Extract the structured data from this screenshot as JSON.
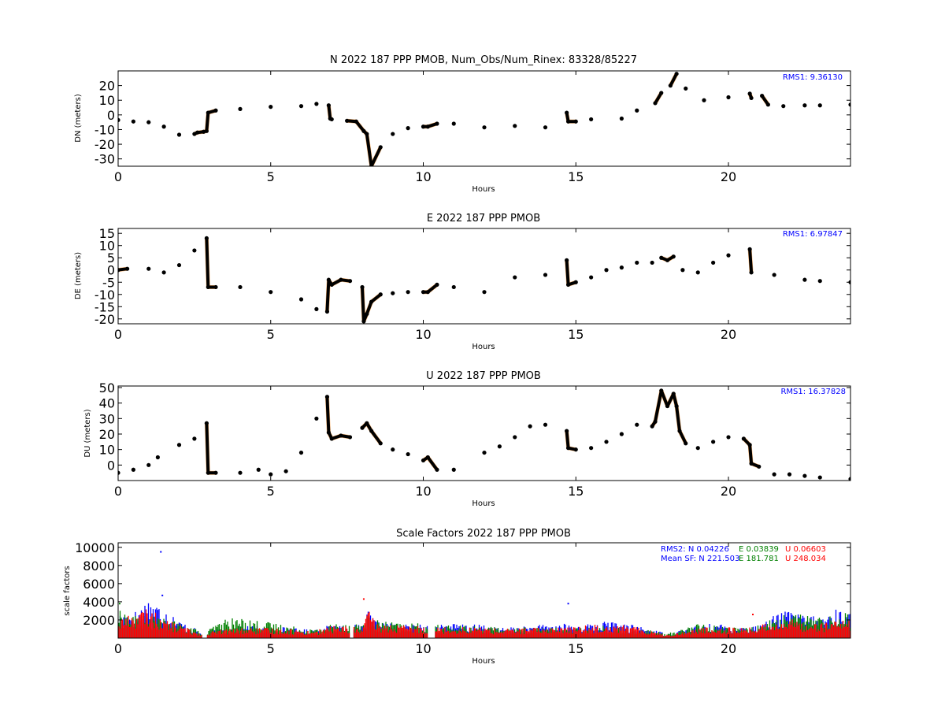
{
  "chart_data": [
    {
      "type": "scatter",
      "title": "N 2022 187 PPP  PMOB, Num_Obs/Num_Rinex: 83328/85227",
      "xlabel": "Hours",
      "ylabel": "DN (meters)",
      "xlim": [
        0,
        24
      ],
      "ylim": [
        -35,
        30
      ],
      "xticks": [
        0,
        5,
        10,
        15,
        20
      ],
      "yticks": [
        20,
        10,
        0,
        -10,
        -20,
        -30
      ],
      "annotation": "RMS1:  9.36130",
      "annotation_color": "#0000ff",
      "series": [
        {
          "marker_color": "#000000",
          "x": [
            0,
            0.5,
            1.0,
            1.5,
            2.0,
            2.5,
            2.6,
            2.8,
            2.9,
            2.95,
            3.2,
            4.0,
            5.0,
            6.0,
            6.5,
            6.9,
            6.95,
            7.0,
            7.5,
            7.8,
            8.05,
            8.15,
            8.3,
            8.6,
            9.0,
            9.5,
            10.0,
            10.15,
            10.45,
            11.0,
            12.0,
            13.0,
            14.0,
            14.7,
            14.75,
            15.0,
            15.5,
            16.5,
            17.0,
            17.6,
            17.8,
            18.1,
            18.3,
            18.6,
            19.2,
            20.0,
            20.7,
            20.75,
            21.1,
            21.3,
            21.8,
            22.5,
            23.0,
            24.0
          ],
          "y": [
            -3.5,
            -4.5,
            -5,
            -8,
            -13.5,
            -13,
            -12,
            -11.5,
            -11,
            1.5,
            3,
            4,
            5.5,
            6,
            7.5,
            6.5,
            -2.5,
            -3,
            -4,
            -4.5,
            -11,
            -13,
            -35,
            -22,
            -13,
            -9,
            -8,
            -8,
            -6,
            -6,
            -8.5,
            -7.5,
            -8.5,
            1.5,
            -4.5,
            -4.5,
            -3,
            -2.5,
            3,
            8,
            15,
            20,
            28,
            18,
            10,
            12,
            14.5,
            11.5,
            13,
            7,
            6,
            6.5,
            6.5,
            7
          ]
        }
      ]
    },
    {
      "type": "scatter",
      "title": "E 2022 187 PPP  PMOB",
      "xlabel": "Hours",
      "ylabel": "DE (meters)",
      "xlim": [
        0,
        24
      ],
      "ylim": [
        -22,
        17
      ],
      "xticks": [
        0,
        5,
        10,
        15,
        20
      ],
      "yticks": [
        15,
        10,
        5,
        0,
        -5,
        -10,
        -15,
        -20
      ],
      "annotation": "RMS1:  6.97847",
      "annotation_color": "#0000ff",
      "series": [
        {
          "marker_color": "#000000",
          "x": [
            0,
            0.3,
            1.0,
            1.5,
            2.0,
            2.5,
            2.9,
            2.95,
            3.2,
            4.0,
            5.0,
            6.0,
            6.5,
            6.85,
            6.9,
            7.0,
            7.3,
            7.6,
            8.0,
            8.05,
            8.15,
            8.3,
            8.6,
            9.0,
            9.5,
            10.0,
            10.15,
            10.45,
            11.0,
            12.0,
            13.0,
            14.0,
            14.7,
            14.75,
            15.0,
            15.5,
            16.0,
            16.5,
            17.0,
            17.5,
            17.8,
            18.0,
            18.2,
            18.5,
            19.0,
            19.5,
            20.0,
            20.7,
            20.75,
            21.5,
            22.5,
            23.0,
            24.0
          ],
          "y": [
            0,
            0.5,
            0.5,
            -1,
            2,
            8,
            13,
            -7,
            -7,
            -7,
            -9,
            -12,
            -16,
            -17,
            -4,
            -6,
            -4,
            -4.5,
            -7,
            -21,
            -18,
            -13,
            -10,
            -9.5,
            -9,
            -9,
            -9,
            -6,
            -7,
            -9,
            -3,
            -2,
            4,
            -6,
            -5,
            -3,
            0,
            1,
            3,
            3,
            5,
            4,
            5.5,
            0,
            -1,
            3,
            6,
            8.5,
            -1,
            -2,
            -4,
            -4.5,
            -5
          ]
        }
      ]
    },
    {
      "type": "scatter",
      "title": "U 2022 187 PPP  PMOB",
      "xlabel": "Hours",
      "ylabel": "DU (meters)",
      "xlim": [
        0,
        24
      ],
      "ylim": [
        -10,
        51
      ],
      "xticks": [
        0,
        5,
        10,
        15,
        20
      ],
      "yticks": [
        50,
        40,
        30,
        20,
        10,
        0
      ],
      "annotation": "RMS1: 16.37828",
      "annotation_color": "#0000ff",
      "series": [
        {
          "marker_color": "#000000",
          "x": [
            0,
            0.5,
            1.0,
            1.3,
            2.0,
            2.5,
            2.9,
            2.95,
            3.2,
            4.0,
            4.6,
            5.0,
            5.5,
            6.0,
            6.5,
            6.85,
            6.9,
            7.0,
            7.3,
            7.6,
            8.0,
            8.15,
            8.3,
            8.6,
            9.0,
            9.5,
            10.0,
            10.15,
            10.45,
            11.0,
            12.0,
            12.5,
            13.0,
            13.5,
            14.0,
            14.7,
            14.75,
            15.0,
            15.5,
            16.0,
            16.5,
            17.0,
            17.5,
            17.6,
            17.8,
            18.0,
            18.2,
            18.3,
            18.4,
            18.6,
            19.0,
            19.5,
            20.0,
            20.5,
            20.7,
            20.75,
            21.0,
            21.5,
            22.0,
            22.5,
            23.0,
            24.0
          ],
          "y": [
            -5,
            -3,
            0,
            5,
            13,
            17,
            27,
            -5,
            -5,
            -5,
            -3,
            -6,
            -4,
            8,
            30,
            44,
            21,
            17,
            19,
            18,
            24,
            27,
            22,
            14,
            10,
            7,
            3,
            5,
            -3,
            -3,
            8,
            12,
            18,
            25,
            26,
            22,
            11,
            10,
            11,
            15,
            20,
            26,
            25,
            28,
            48,
            38,
            46,
            38,
            22,
            14,
            11,
            15,
            18,
            17,
            13,
            1,
            -1,
            -6,
            -6,
            -7,
            -8,
            -9
          ]
        }
      ]
    },
    {
      "type": "bar",
      "title": "Scale Factors 2022 187 PPP  PMOB",
      "xlabel": "Hours",
      "ylabel": "scale factors",
      "xlim": [
        0,
        24
      ],
      "ylim": [
        0,
        10500
      ],
      "xticks": [
        0,
        5,
        10,
        15,
        20
      ],
      "yticks": [
        10000,
        8000,
        6000,
        4000,
        2000
      ],
      "annotations": [
        {
          "label": "RMS2: N  0.04226",
          "color": "#0000ff"
        },
        {
          "label": "E  0.03839",
          "color": "#008000"
        },
        {
          "label": "U  0.06603",
          "color": "#ff0000"
        },
        {
          "label": "Mean SF: N 221.503",
          "color": "#0000ff"
        },
        {
          "label": "E 181.781",
          "color": "#008000"
        },
        {
          "label": "U 248.034",
          "color": "#ff0000"
        }
      ],
      "series": [
        {
          "name": "N",
          "color": "#0000ff",
          "x": [
            0,
            0.5,
            1.0,
            1.5,
            2.0,
            2.5,
            2.9,
            3.0,
            3.5,
            4.0,
            4.5,
            5.0,
            5.5,
            6.0,
            6.5,
            7.0,
            7.5,
            8.0,
            8.2,
            8.5,
            9.0,
            9.5,
            10.0,
            10.5,
            11.0,
            11.5,
            12.0,
            12.5,
            13.0,
            13.5,
            14.0,
            14.5,
            15.0,
            15.5,
            16.0,
            16.5,
            17.0,
            17.5,
            18.0,
            18.5,
            19.0,
            19.5,
            20.0,
            20.5,
            21.0,
            21.5,
            22.0,
            22.5,
            23.0,
            23.5,
            24.0
          ],
          "y": [
            2200,
            2300,
            3600,
            2800,
            1600,
            900,
            200,
            700,
            900,
            1100,
            1100,
            1000,
            1000,
            800,
            800,
            1200,
            1300,
            1100,
            2400,
            1400,
            1300,
            1200,
            1200,
            1300,
            1300,
            1200,
            1200,
            900,
            1000,
            1100,
            1200,
            1300,
            1200,
            1300,
            1500,
            1300,
            1100,
            800,
            400,
            800,
            1100,
            1300,
            1200,
            1000,
            1200,
            2000,
            2500,
            2000,
            1900,
            2600,
            2200
          ]
        },
        {
          "name": "E",
          "color": "#008000",
          "x": [
            0,
            0.5,
            1.0,
            1.5,
            2.0,
            2.5,
            2.9,
            3.0,
            3.5,
            4.0,
            4.5,
            5.0,
            5.5,
            6.0,
            6.5,
            7.0,
            7.5,
            8.0,
            8.2,
            8.5,
            9.0,
            9.5,
            10.0,
            10.5,
            11.0,
            11.5,
            12.0,
            12.5,
            13.0,
            13.5,
            14.0,
            14.5,
            15.0,
            15.5,
            16.0,
            16.5,
            17.0,
            17.5,
            18.0,
            18.5,
            19.0,
            19.5,
            20.0,
            20.5,
            21.0,
            21.5,
            22.0,
            22.5,
            23.0,
            23.5,
            24.0
          ],
          "y": [
            2500,
            2000,
            2000,
            1700,
            1400,
            900,
            200,
            900,
            1700,
            1800,
            1600,
            1400,
            1200,
            900,
            800,
            1300,
            1500,
            1300,
            2100,
            1600,
            1400,
            1300,
            1300,
            1200,
            1100,
            1100,
            1100,
            900,
            900,
            1000,
            1000,
            900,
            900,
            1000,
            1100,
            1000,
            900,
            700,
            400,
            900,
            1300,
            1200,
            1000,
            900,
            1200,
            1800,
            2200,
            2100,
            1900,
            2000,
            2500
          ]
        },
        {
          "name": "U",
          "color": "#ff0000",
          "x": [
            0,
            0.5,
            1.0,
            1.5,
            2.0,
            2.5,
            2.9,
            3.0,
            3.5,
            4.0,
            4.5,
            5.0,
            5.5,
            6.0,
            6.5,
            7.0,
            7.5,
            8.0,
            8.2,
            8.5,
            9.0,
            9.5,
            10.0,
            10.5,
            11.0,
            11.5,
            12.0,
            12.5,
            13.0,
            13.5,
            14.0,
            14.5,
            15.0,
            15.5,
            16.0,
            16.5,
            17.0,
            17.5,
            18.0,
            18.5,
            19.0,
            19.5,
            20.0,
            20.5,
            21.0,
            21.5,
            22.0,
            22.5,
            23.0,
            23.5,
            24.0
          ],
          "y": [
            1800,
            2200,
            2700,
            1700,
            1200,
            700,
            200,
            600,
            800,
            900,
            900,
            900,
            900,
            700,
            700,
            1100,
            1100,
            900,
            2500,
            1300,
            1200,
            1100,
            1100,
            1000,
            1000,
            1000,
            1000,
            800,
            900,
            900,
            1000,
            1000,
            1000,
            1200,
            1300,
            1200,
            1000,
            700,
            300,
            600,
            900,
            1000,
            1000,
            900,
            1100,
            1600,
            1700,
            1500,
            1400,
            1500,
            1600
          ]
        }
      ]
    }
  ]
}
